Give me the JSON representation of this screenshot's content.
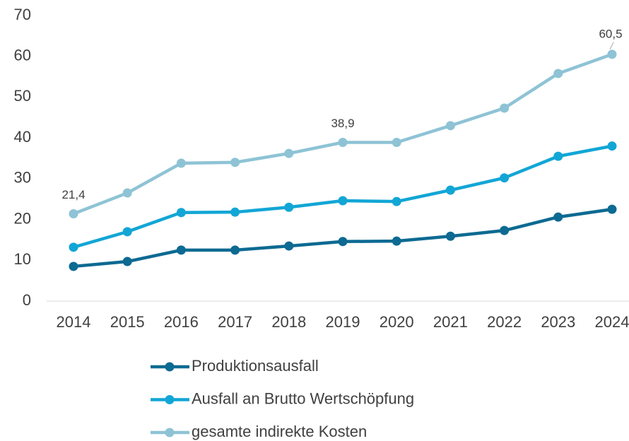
{
  "chart_data": {
    "type": "line",
    "categories": [
      "2014",
      "2015",
      "2016",
      "2017",
      "2018",
      "2019",
      "2020",
      "2021",
      "2022",
      "2023",
      "2024"
    ],
    "series": [
      {
        "name": "Produktionsausfall",
        "color": "#0d6a92",
        "values": [
          8.5,
          9.7,
          12.5,
          12.5,
          13.5,
          14.6,
          14.7,
          15.9,
          17.3,
          20.6,
          22.5
        ]
      },
      {
        "name": "Ausfall an Brutto Wertschöpfung",
        "color": "#12a6d6",
        "values": [
          13.2,
          17.0,
          21.7,
          21.8,
          23.0,
          24.6,
          24.4,
          27.2,
          30.2,
          35.5,
          38.0
        ]
      },
      {
        "name": "gesamte indirekte Kosten",
        "color": "#8ec3d5",
        "values": [
          21.4,
          26.5,
          33.8,
          34.0,
          36.2,
          38.9,
          38.9,
          43.0,
          47.3,
          55.8,
          60.5
        ],
        "value_labels": [
          "21,4",
          null,
          null,
          null,
          null,
          "38,9",
          null,
          null,
          null,
          null,
          "60,5"
        ]
      }
    ],
    "ylim": [
      0,
      70
    ],
    "yticks": [
      0,
      10,
      20,
      30,
      40,
      50,
      60,
      70
    ],
    "grid": false,
    "legend": "bottom"
  }
}
